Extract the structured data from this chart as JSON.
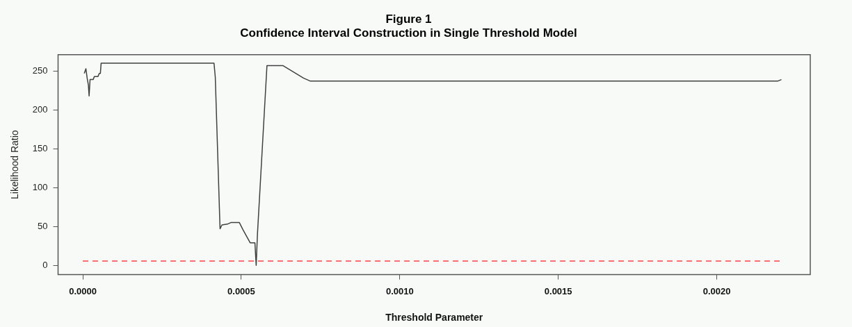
{
  "chart_data": {
    "type": "line",
    "title": "Figure 1",
    "subtitle": "Confidence Interval Construction in Single Threshold Model",
    "xlabel": "Threshold Parameter",
    "ylabel": "Likelihood Ratio",
    "x": [
      4.6e-06,
      9.8e-06,
      1.37e-05,
      1.76e-05,
      1.99e-05,
      2.29e-05,
      3.27e-05,
      3.66e-05,
      4.8e-05,
      5.19e-05,
      5.55e-05,
      5.78e-05,
      0.000414,
      0.000418,
      0.000433,
      0.000439,
      0.000456,
      0.000467,
      0.000494,
      0.000505,
      0.000528,
      0.000543,
      0.000547,
      0.000551,
      0.000581,
      0.000585,
      0.000631,
      0.000696,
      0.000718,
      0.002192,
      0.002204
    ],
    "series": [
      {
        "color": "#404040",
        "values": [
          247,
          253,
          241,
          232,
          218,
          239,
          239,
          243,
          243,
          247,
          247,
          260,
          260,
          242,
          47,
          52,
          53,
          55,
          55,
          46,
          29,
          29,
          0,
          40,
          257,
          257,
          257,
          241,
          237,
          237,
          239
        ]
      }
    ],
    "xlim": [
      -7.8e-05,
      0.002295
    ],
    "xticks": [
      {
        "value": 0,
        "label": "0.0000"
      },
      {
        "value": 0.0005,
        "label": "0.0005"
      },
      {
        "value": 0.001,
        "label": "0.0010"
      },
      {
        "value": 0.0015,
        "label": "0.0015"
      },
      {
        "value": 0.002,
        "label": "0.0020"
      }
    ],
    "ylim": [
      -12,
      271
    ],
    "yticks": [
      0,
      50,
      100,
      150,
      200,
      250
    ],
    "ref_lines": [
      {
        "axis": "y",
        "value": 5.5,
        "color": "#ff4040",
        "line_style": "dashed"
      }
    ],
    "grid": false,
    "legend": false,
    "marker": "none",
    "line_style": "solid"
  }
}
